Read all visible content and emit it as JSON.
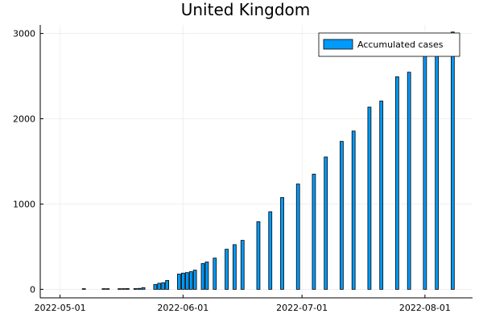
{
  "chart_data": {
    "type": "bar",
    "title": "United Kingdom",
    "xlabel": "",
    "ylabel": "",
    "x_type": "date",
    "xlim": [
      "2022-04-26",
      "2022-08-13"
    ],
    "ylim": [
      -100,
      3100
    ],
    "x_ticks": [
      "2022-05-01",
      "2022-06-01",
      "2022-07-01",
      "2022-08-01"
    ],
    "y_ticks": [
      0,
      1000,
      2000,
      3000
    ],
    "grid": true,
    "legend_position": "top-right",
    "bar_color": "#009AFA",
    "series": [
      {
        "name": "Accumulated cases",
        "points": [
          {
            "x": "2022-05-07",
            "y": 2
          },
          {
            "x": "2022-05-12",
            "y": 2
          },
          {
            "x": "2022-05-13",
            "y": 2
          },
          {
            "x": "2022-05-16",
            "y": 7
          },
          {
            "x": "2022-05-17",
            "y": 8
          },
          {
            "x": "2022-05-18",
            "y": 9
          },
          {
            "x": "2022-05-20",
            "y": 9
          },
          {
            "x": "2022-05-21",
            "y": 11
          },
          {
            "x": "2022-05-22",
            "y": 20
          },
          {
            "x": "2022-05-25",
            "y": 56
          },
          {
            "x": "2022-05-26",
            "y": 71
          },
          {
            "x": "2022-05-27",
            "y": 78
          },
          {
            "x": "2022-05-28",
            "y": 104
          },
          {
            "x": "2022-05-31",
            "y": 179
          },
          {
            "x": "2022-06-01",
            "y": 190
          },
          {
            "x": "2022-06-02",
            "y": 196
          },
          {
            "x": "2022-06-03",
            "y": 207
          },
          {
            "x": "2022-06-04",
            "y": 225
          },
          {
            "x": "2022-06-06",
            "y": 302
          },
          {
            "x": "2022-06-07",
            "y": 321
          },
          {
            "x": "2022-06-09",
            "y": 366
          },
          {
            "x": "2022-06-12",
            "y": 470
          },
          {
            "x": "2022-06-14",
            "y": 524
          },
          {
            "x": "2022-06-16",
            "y": 574
          },
          {
            "x": "2022-06-20",
            "y": 793
          },
          {
            "x": "2022-06-23",
            "y": 910
          },
          {
            "x": "2022-06-26",
            "y": 1076
          },
          {
            "x": "2022-06-30",
            "y": 1235
          },
          {
            "x": "2022-07-04",
            "y": 1351
          },
          {
            "x": "2022-07-07",
            "y": 1552
          },
          {
            "x": "2022-07-11",
            "y": 1735
          },
          {
            "x": "2022-07-14",
            "y": 1856
          },
          {
            "x": "2022-07-18",
            "y": 2137
          },
          {
            "x": "2022-07-21",
            "y": 2208
          },
          {
            "x": "2022-07-25",
            "y": 2493
          },
          {
            "x": "2022-07-28",
            "y": 2546
          },
          {
            "x": "2022-08-01",
            "y": 2813
          },
          {
            "x": "2022-08-04",
            "y": 2859
          },
          {
            "x": "2022-08-08",
            "y": 3017
          }
        ]
      }
    ]
  }
}
